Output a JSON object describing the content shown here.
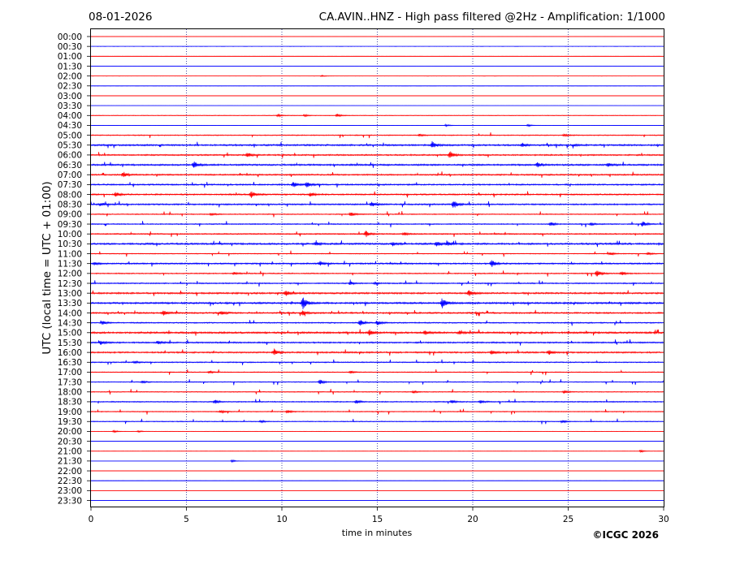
{
  "header": {
    "date": "08-01-2026",
    "title": "CA.AVIN..HNZ - High pass filtered @2Hz - Amplification: 1/1000"
  },
  "footer": {
    "copyright": "©ICGC 2026"
  },
  "colors": {
    "even_row": "#ff0000",
    "odd_row": "#0000ff",
    "frame": "#000000",
    "grid": "#000080"
  },
  "chart_data": {
    "type": "line",
    "subtype": "helicorder",
    "xlabel": "time in minutes",
    "ylabel": "UTC (local time = UTC + 01:00)",
    "xlim": [
      0,
      30
    ],
    "x_ticks": [
      "0",
      "5",
      "10",
      "15",
      "20",
      "25",
      "30"
    ],
    "x_tick_values": [
      0,
      5,
      10,
      15,
      20,
      25,
      30
    ],
    "grid": "vertical dotted lines at 5-minute intervals",
    "row_interval_minutes": 30,
    "row_color_pattern": [
      "red",
      "blue"
    ],
    "rows": [
      {
        "label": "00:00",
        "activity": 0.05,
        "events": []
      },
      {
        "label": "00:30",
        "activity": 0.05,
        "events": []
      },
      {
        "label": "01:00",
        "activity": 0.05,
        "events": []
      },
      {
        "label": "01:30",
        "activity": 0.05,
        "events": []
      },
      {
        "label": "02:00",
        "activity": 0.06,
        "events": [
          [
            12.1,
            1
          ]
        ]
      },
      {
        "label": "02:30",
        "activity": 0.05,
        "events": []
      },
      {
        "label": "03:00",
        "activity": 0.05,
        "events": []
      },
      {
        "label": "03:30",
        "activity": 0.05,
        "events": []
      },
      {
        "label": "04:00",
        "activity": 0.25,
        "events": [
          [
            9.8,
            1.5
          ],
          [
            11.2,
            1.5
          ],
          [
            12.9,
            2
          ]
        ]
      },
      {
        "label": "04:30",
        "activity": 0.1,
        "events": [
          [
            18.6,
            1.5
          ],
          [
            22.9,
            1.5
          ]
        ]
      },
      {
        "label": "05:00",
        "activity": 0.4,
        "events": [
          [
            17.2,
            1.5
          ],
          [
            24.8,
            1.5
          ]
        ]
      },
      {
        "label": "05:30",
        "activity": 0.7,
        "events": [
          [
            17.9,
            4
          ],
          [
            22.6,
            2.5
          ],
          [
            25.3,
            1.5
          ]
        ]
      },
      {
        "label": "06:00",
        "activity": 0.6,
        "events": [
          [
            8.2,
            3
          ],
          [
            18.8,
            4.5
          ]
        ]
      },
      {
        "label": "06:30",
        "activity": 0.7,
        "events": [
          [
            5.4,
            4
          ],
          [
            23.4,
            3
          ],
          [
            27.1,
            2
          ]
        ]
      },
      {
        "label": "07:00",
        "activity": 0.6,
        "events": [
          [
            1.7,
            3.5
          ]
        ]
      },
      {
        "label": "07:30",
        "activity": 0.6,
        "events": [
          [
            10.6,
            3.5
          ],
          [
            11.3,
            3.5
          ]
        ]
      },
      {
        "label": "08:00",
        "activity": 0.6,
        "events": [
          [
            1.3,
            3
          ],
          [
            8.4,
            4.5
          ],
          [
            11.5,
            3
          ]
        ]
      },
      {
        "label": "08:30",
        "activity": 0.6,
        "events": [
          [
            14.7,
            3
          ],
          [
            19.0,
            5.5
          ],
          [
            0.5,
            2
          ]
        ]
      },
      {
        "label": "09:00",
        "activity": 0.4,
        "events": [
          [
            13.6,
            3
          ],
          [
            6.3,
            1.5
          ]
        ]
      },
      {
        "label": "09:30",
        "activity": 0.45,
        "events": [
          [
            24.1,
            2.5
          ],
          [
            26.2,
            2
          ],
          [
            28.9,
            3.5
          ]
        ]
      },
      {
        "label": "10:00",
        "activity": 0.5,
        "events": [
          [
            14.4,
            4
          ],
          [
            16.4,
            2
          ]
        ]
      },
      {
        "label": "10:30",
        "activity": 0.75,
        "events": [
          [
            18.1,
            3
          ],
          [
            18.7,
            2.5
          ],
          [
            11.8,
            2
          ],
          [
            15.8,
            2.5
          ]
        ]
      },
      {
        "label": "11:00",
        "activity": 0.35,
        "events": [
          [
            27.2,
            2
          ],
          [
            29.2,
            1.5
          ]
        ]
      },
      {
        "label": "11:30",
        "activity": 0.6,
        "events": [
          [
            21.0,
            4.5
          ],
          [
            12.0,
            2.5
          ],
          [
            0.2,
            2
          ]
        ]
      },
      {
        "label": "12:00",
        "activity": 0.45,
        "events": [
          [
            26.5,
            4.5
          ],
          [
            27.8,
            2.5
          ],
          [
            7.5,
            1.5
          ]
        ]
      },
      {
        "label": "12:30",
        "activity": 0.5,
        "events": [
          [
            13.6,
            2
          ],
          [
            14.9,
            1.5
          ]
        ]
      },
      {
        "label": "13:00",
        "activity": 0.7,
        "events": [
          [
            10.2,
            3.5
          ],
          [
            19.8,
            4
          ]
        ]
      },
      {
        "label": "13:30",
        "activity": 0.75,
        "events": [
          [
            11.1,
            8
          ],
          [
            18.4,
            7
          ]
        ]
      },
      {
        "label": "14:00",
        "activity": 0.65,
        "events": [
          [
            3.8,
            3
          ],
          [
            6.8,
            2.5
          ],
          [
            11.1,
            3
          ]
        ]
      },
      {
        "label": "14:30",
        "activity": 0.5,
        "events": [
          [
            14.1,
            4
          ],
          [
            15.0,
            3
          ],
          [
            0.6,
            2.5
          ]
        ]
      },
      {
        "label": "15:00",
        "activity": 0.75,
        "events": [
          [
            14.6,
            3.5
          ],
          [
            17.5,
            2.5
          ],
          [
            19.3,
            2
          ]
        ]
      },
      {
        "label": "15:30",
        "activity": 0.6,
        "events": [
          [
            0.5,
            2.5
          ],
          [
            3.5,
            2
          ]
        ]
      },
      {
        "label": "16:00",
        "activity": 0.65,
        "events": [
          [
            9.6,
            4
          ],
          [
            21.0,
            2.5
          ],
          [
            24.0,
            3
          ]
        ]
      },
      {
        "label": "16:30",
        "activity": 0.45,
        "events": [
          [
            2.3,
            1.5
          ]
        ]
      },
      {
        "label": "17:00",
        "activity": 0.35,
        "events": [
          [
            6.2,
            1.5
          ],
          [
            13.6,
            1.5
          ]
        ]
      },
      {
        "label": "17:30",
        "activity": 0.35,
        "events": [
          [
            12.0,
            3
          ],
          [
            2.7,
            1.5
          ]
        ]
      },
      {
        "label": "18:00",
        "activity": 0.35,
        "events": [
          [
            16.9,
            1.5
          ],
          [
            24.8,
            2
          ]
        ]
      },
      {
        "label": "18:30",
        "activity": 0.45,
        "events": [
          [
            6.5,
            2.5
          ],
          [
            13.9,
            2.5
          ],
          [
            18.9,
            2
          ],
          [
            20.4,
            2
          ]
        ]
      },
      {
        "label": "19:00",
        "activity": 0.35,
        "events": [
          [
            6.8,
            2
          ],
          [
            10.3,
            2
          ]
        ]
      },
      {
        "label": "19:30",
        "activity": 0.35,
        "events": [
          [
            24.7,
            2
          ],
          [
            8.9,
            1.5
          ]
        ]
      },
      {
        "label": "20:00",
        "activity": 0.15,
        "events": [
          [
            1.2,
            1.5
          ],
          [
            2.5,
            1
          ]
        ]
      },
      {
        "label": "20:30",
        "activity": 0.06,
        "events": []
      },
      {
        "label": "21:00",
        "activity": 0.07,
        "events": [
          [
            28.8,
            1.5
          ]
        ]
      },
      {
        "label": "21:30",
        "activity": 0.06,
        "events": [
          [
            7.4,
            1.5
          ]
        ]
      },
      {
        "label": "22:00",
        "activity": 0.05,
        "events": []
      },
      {
        "label": "22:30",
        "activity": 0.05,
        "events": []
      },
      {
        "label": "23:00",
        "activity": 0.05,
        "events": []
      },
      {
        "label": "23:30",
        "activity": 0.05,
        "events": []
      }
    ]
  }
}
